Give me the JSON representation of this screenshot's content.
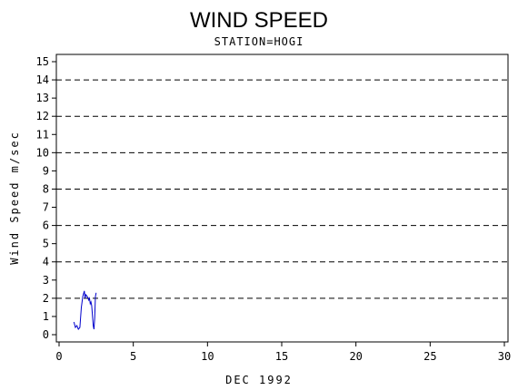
{
  "chart_data": {
    "type": "line",
    "title": "WIND SPEED",
    "subtitle": "STATION=HOGI",
    "xlabel": "DEC 1992",
    "ylabel": "Wind Speed m/sec",
    "xlim": [
      0,
      30
    ],
    "ylim": [
      0,
      15
    ],
    "x_ticks": [
      0,
      5,
      10,
      15,
      20,
      25,
      30
    ],
    "y_ticks": [
      0,
      1,
      2,
      3,
      4,
      5,
      6,
      7,
      8,
      9,
      10,
      11,
      12,
      13,
      14,
      15
    ],
    "gridlines_y": [
      2,
      4,
      6,
      8,
      10,
      12,
      14
    ],
    "gridline_style": "dashed",
    "series": [
      {
        "color": "#0000cc",
        "x": [
          1.0,
          1.1,
          1.2,
          1.3,
          1.4,
          1.5,
          1.6,
          1.7,
          1.75,
          1.8,
          1.9,
          2.0,
          2.05,
          2.1,
          2.15,
          2.2,
          2.3,
          2.35,
          2.4,
          2.45,
          2.5
        ],
        "y": [
          0.7,
          0.4,
          0.5,
          0.3,
          0.4,
          1.5,
          2.1,
          2.4,
          2.0,
          2.2,
          2.1,
          1.9,
          2.0,
          1.7,
          1.8,
          1.6,
          0.5,
          0.3,
          0.9,
          2.1,
          2.3
        ]
      }
    ]
  }
}
